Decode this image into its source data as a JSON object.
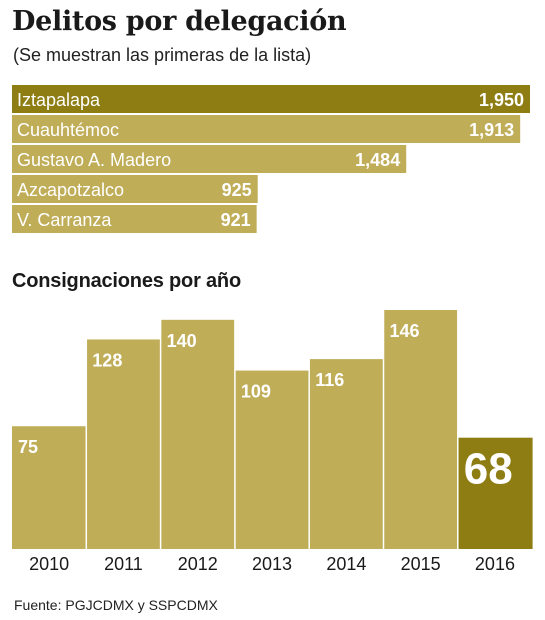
{
  "title": "Delitos por delegación",
  "subtitle": "(Se muestran las primeras de la lista)",
  "section2_title": "Consignaciones por año",
  "source": "Fuente: PGJCDMX y SSPCDMX",
  "colors": {
    "bar_light": "#c0ad58",
    "bar_dark": "#8d7d12",
    "gap": "#ffffff"
  },
  "chart_data": [
    {
      "type": "bar",
      "orientation": "horizontal",
      "title": "Delitos por delegación",
      "subtitle": "(Se muestran las primeras de la lista)",
      "categories": [
        "Iztapalapa",
        "Cuauhtémoc",
        "Gustavo A. Madero",
        "Azcapotzalco",
        "V. Carranza"
      ],
      "values": [
        1950,
        1913,
        1484,
        925,
        921
      ],
      "value_labels": [
        "1,950",
        "1,913",
        "1,484",
        "925",
        "921"
      ],
      "highlight": [
        "Iztapalapa"
      ],
      "xlim": [
        0,
        1950
      ]
    },
    {
      "type": "bar",
      "orientation": "vertical",
      "title": "Consignaciones por año",
      "categories": [
        "2010",
        "2011",
        "2012",
        "2013",
        "2014",
        "2015",
        "2016"
      ],
      "values": [
        75,
        128,
        140,
        109,
        116,
        146,
        68
      ],
      "value_labels": [
        "75",
        "128",
        "140",
        "109",
        "116",
        "146",
        "68"
      ],
      "highlight": [
        "2016"
      ],
      "ylim": [
        0,
        150
      ]
    }
  ]
}
